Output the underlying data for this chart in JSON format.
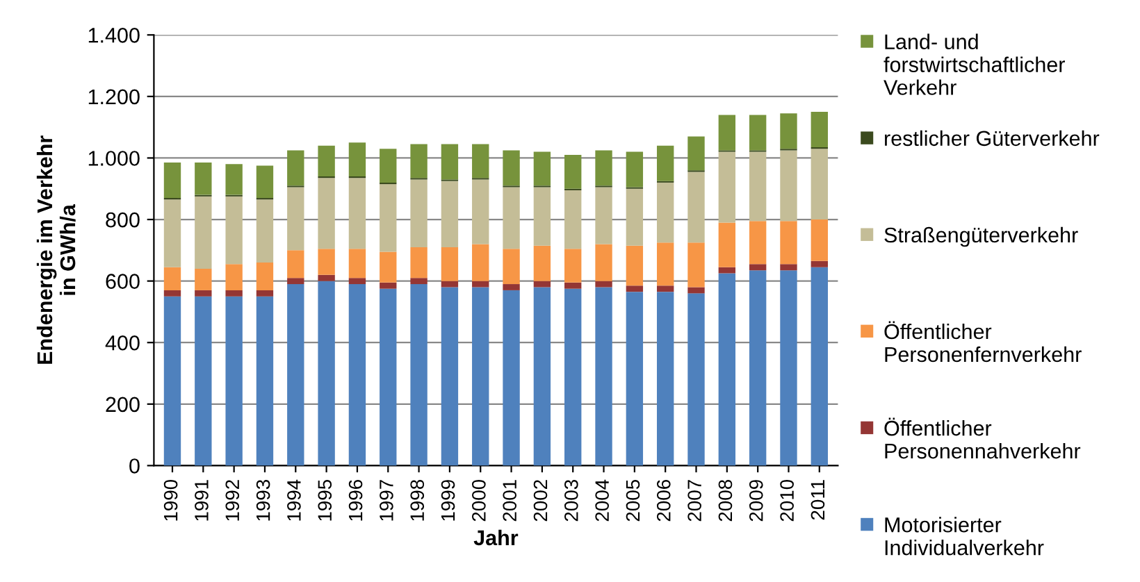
{
  "chart_data": {
    "type": "bar",
    "stacked": true,
    "xlabel": "Jahr",
    "ylabel": "Endenergie im Verkehr\nin GWh/a",
    "categories": [
      "1990",
      "1991",
      "1992",
      "1993",
      "1994",
      "1995",
      "1996",
      "1997",
      "1998",
      "1999",
      "2000",
      "2001",
      "2002",
      "2003",
      "2004",
      "2005",
      "2006",
      "2007",
      "2008",
      "2009",
      "2010",
      "2011"
    ],
    "series": [
      {
        "name": "Motorisierter Individualverkehr",
        "color": "#4f81bd",
        "values": [
          550,
          550,
          550,
          550,
          590,
          600,
          590,
          575,
          590,
          580,
          580,
          570,
          580,
          575,
          580,
          565,
          565,
          560,
          625,
          635,
          635,
          645
        ]
      },
      {
        "name": "Öffentlicher Personennahverkehr",
        "color": "#943634",
        "values": [
          20,
          20,
          20,
          20,
          20,
          20,
          20,
          20,
          20,
          20,
          20,
          20,
          20,
          20,
          20,
          20,
          20,
          20,
          20,
          20,
          20,
          20
        ]
      },
      {
        "name": "Öffentlicher Personenfernverkehr",
        "color": "#f79646",
        "values": [
          75,
          70,
          85,
          90,
          90,
          85,
          95,
          100,
          100,
          110,
          120,
          115,
          115,
          110,
          120,
          130,
          140,
          145,
          145,
          140,
          140,
          135
        ]
      },
      {
        "name": "Straßengüterverkehr",
        "color": "#c4bd97",
        "values": [
          220,
          235,
          220,
          205,
          205,
          230,
          230,
          220,
          220,
          215,
          210,
          200,
          190,
          190,
          185,
          185,
          195,
          230,
          230,
          225,
          230,
          230
        ]
      },
      {
        "name": "restlicher Güterverkehr",
        "color": "#3b4a1e",
        "values": [
          5,
          5,
          5,
          5,
          5,
          5,
          5,
          5,
          5,
          5,
          5,
          5,
          5,
          5,
          5,
          5,
          5,
          5,
          5,
          5,
          5,
          5
        ]
      },
      {
        "name": "Land- und forstwirtschaftlicher Verkehr",
        "color": "#77933c",
        "values": [
          115,
          105,
          100,
          105,
          115,
          100,
          110,
          110,
          110,
          115,
          110,
          115,
          110,
          110,
          115,
          115,
          115,
          110,
          115,
          115,
          115,
          115
        ]
      }
    ],
    "ylim": [
      0,
      1400
    ],
    "yticks": [
      0,
      200,
      400,
      600,
      800,
      {
        "value": 1000,
        "label": "1.000"
      },
      {
        "value": 1200,
        "label": "1.200"
      },
      {
        "value": 1400,
        "label": "1.400"
      }
    ],
    "grid": "y",
    "legend": "right"
  }
}
